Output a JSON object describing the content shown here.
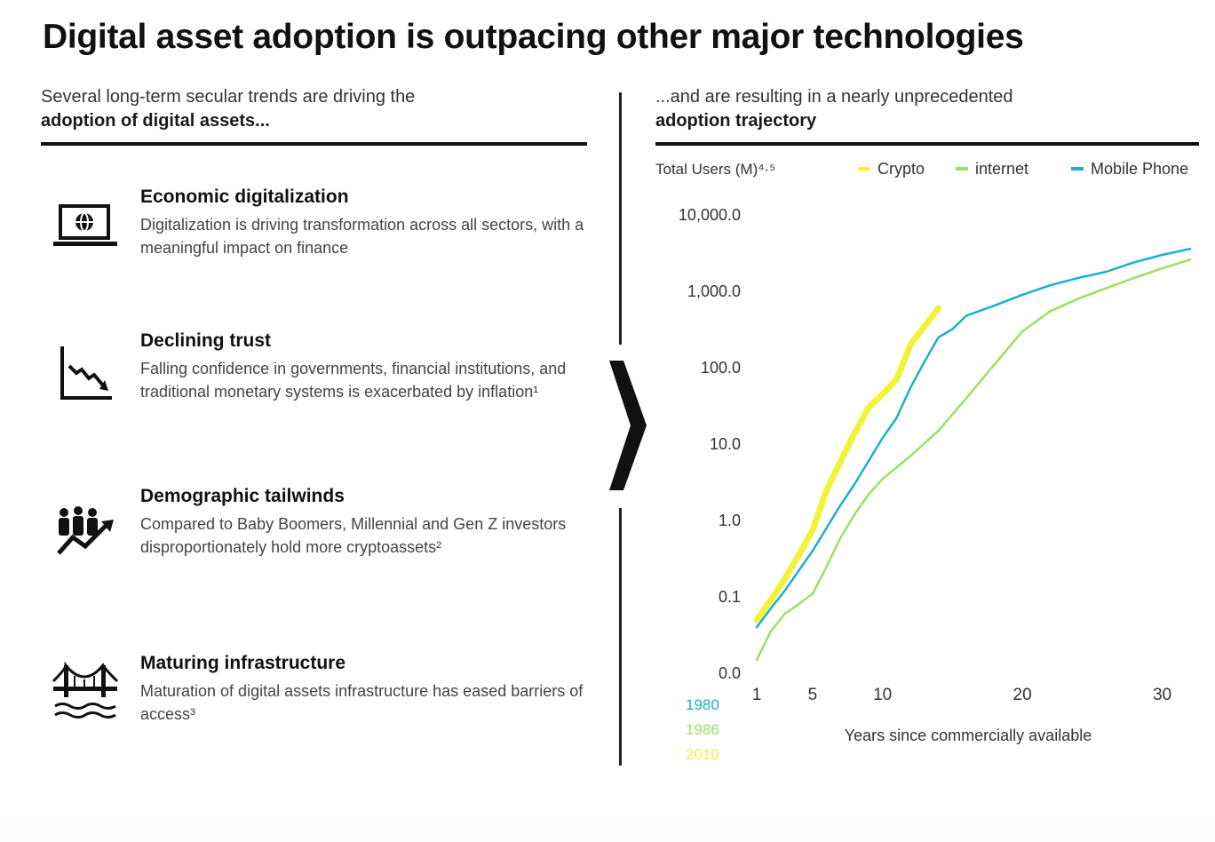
{
  "title": "Digital asset adoption is outpacing other major technologies",
  "left_panel": {
    "intro_line1": "Several long-term secular trends are driving the",
    "intro_line2": "adoption of digital assets...",
    "trends": [
      {
        "icon": "laptop-globe-icon",
        "heading": "Economic digitalization",
        "body": "Digitalization is driving transformation across all sectors, with a meaningful impact on finance"
      },
      {
        "icon": "declining-chart-icon",
        "heading": "Declining trust",
        "body": "Falling confidence in governments, financial institutions, and traditional monetary systems is exacerbated by inflation¹"
      },
      {
        "icon": "people-trend-icon",
        "heading": "Demographic tailwinds",
        "body": "Compared to Baby Boomers, Millennial and Gen Z investors disproportionately hold more cryptoassets²"
      },
      {
        "icon": "bridge-icon",
        "heading": "Maturing infrastructure",
        "body": "Maturation of digital assets infrastructure has eased barriers of access³"
      }
    ]
  },
  "right_panel": {
    "intro_line1": "...and are resulting in a nearly unprecedented",
    "intro_line2": "adoption trajectory"
  },
  "colors": {
    "crypto": "#f2f23a",
    "internet": "#9be060",
    "mobile": "#1ab0cf",
    "text": "#1a1a1a"
  },
  "chart_data": {
    "type": "line",
    "ylabel": "Total Users (M)⁴·⁵",
    "xlabel": "Years since commercially available",
    "yscale": "log",
    "ytick_labels": [
      "10,000.0",
      "1,000.0",
      "100.0",
      "10.0",
      "1.0",
      "0.1",
      "0.0"
    ],
    "ytick_values": [
      10000,
      1000,
      100,
      10,
      1,
      0.1,
      0.01
    ],
    "xtick_labels": [
      "1",
      "5",
      "10",
      "20",
      "30"
    ],
    "xtick_values": [
      1,
      5,
      10,
      20,
      30
    ],
    "xlim": [
      1,
      32
    ],
    "ylim": [
      0.01,
      10000
    ],
    "legend_position": "top",
    "series": [
      {
        "name": "Crypto",
        "color_key": "crypto",
        "start_year": "2010",
        "x": [
          1,
          2,
          3,
          4,
          5,
          6,
          7,
          8,
          9,
          10,
          11,
          12,
          13,
          14
        ],
        "y": [
          0.05,
          0.09,
          0.17,
          0.35,
          0.75,
          2.5,
          6,
          14,
          30,
          45,
          70,
          200,
          350,
          600
        ]
      },
      {
        "name": "internet",
        "color_key": "internet",
        "start_year": "1986",
        "x": [
          1,
          2,
          3,
          4,
          5,
          6,
          7,
          8,
          9,
          10,
          12,
          14,
          16,
          18,
          20,
          22,
          24,
          26,
          28,
          30,
          32
        ],
        "y": [
          0.015,
          0.035,
          0.06,
          0.08,
          0.11,
          0.25,
          0.6,
          1.2,
          2.2,
          3.5,
          7,
          15,
          40,
          110,
          300,
          550,
          800,
          1100,
          1500,
          2000,
          2600
        ]
      },
      {
        "name": "Mobile Phone",
        "color_key": "mobile",
        "start_year": "1980",
        "x": [
          1,
          2,
          3,
          4,
          5,
          6,
          7,
          8,
          9,
          10,
          11,
          12,
          13,
          14,
          15,
          16,
          18,
          20,
          22,
          24,
          26,
          28,
          30,
          32
        ],
        "y": [
          0.04,
          0.07,
          0.12,
          0.22,
          0.4,
          0.8,
          1.6,
          3,
          6,
          12,
          22,
          55,
          120,
          250,
          320,
          480,
          650,
          900,
          1200,
          1500,
          1800,
          2400,
          3000,
          3600
        ]
      }
    ]
  }
}
